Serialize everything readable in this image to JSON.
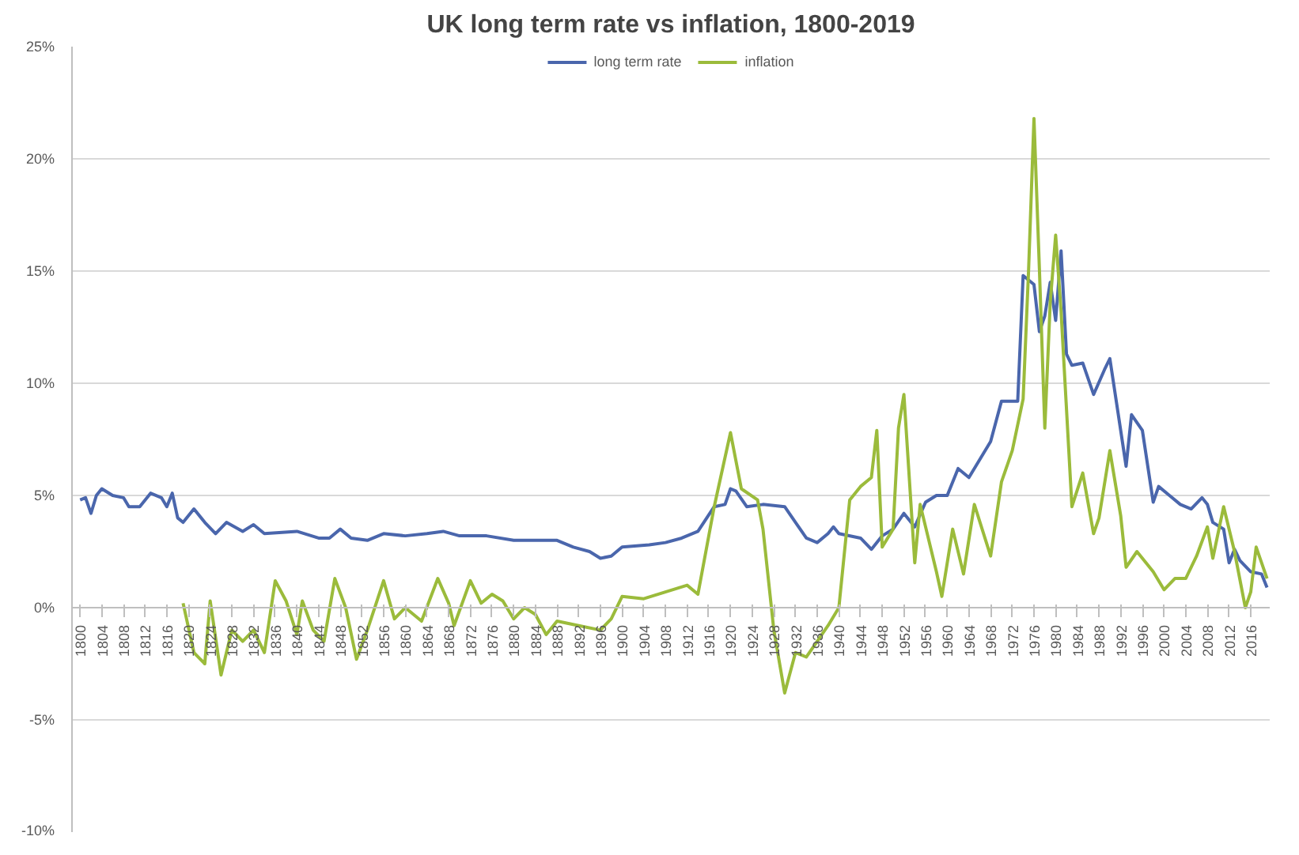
{
  "chart_data": {
    "type": "line",
    "title": "UK long term rate vs inflation, 1800-2019",
    "xlim": [
      1798.5,
      2019.5
    ],
    "xticks": [
      1800,
      1804,
      1808,
      1812,
      1816,
      1820,
      1824,
      1828,
      1832,
      1836,
      1840,
      1844,
      1848,
      1852,
      1856,
      1860,
      1864,
      1868,
      1872,
      1876,
      1880,
      1884,
      1888,
      1892,
      1896,
      1900,
      1904,
      1908,
      1912,
      1916,
      1920,
      1924,
      1928,
      1932,
      1936,
      1940,
      1944,
      1948,
      1952,
      1956,
      1960,
      1964,
      1968,
      1972,
      1976,
      1980,
      1984,
      1988,
      1992,
      1996,
      2000,
      2004,
      2008,
      2012,
      2016
    ],
    "ylim": [
      -10,
      25
    ],
    "yticks": [
      {
        "value": -10,
        "label": "-10%"
      },
      {
        "value": -5,
        "label": "-5%"
      },
      {
        "value": 0,
        "label": "0%"
      },
      {
        "value": 5,
        "label": "5%"
      },
      {
        "value": 10,
        "label": "10%"
      },
      {
        "value": 15,
        "label": "15%"
      },
      {
        "value": 20,
        "label": "20%"
      },
      {
        "value": 25,
        "label": "25%"
      }
    ],
    "grid": "y",
    "legend": "top",
    "marker": "none",
    "line_style": "solid",
    "series": [
      {
        "name": "long term rate",
        "color": "#4a66ac",
        "x": [
          1800,
          1801,
          1802,
          1803,
          1804,
          1806,
          1808,
          1809,
          1811,
          1813,
          1815,
          1816,
          1817,
          1818,
          1819,
          1821,
          1823,
          1825,
          1827,
          1830,
          1832,
          1834,
          1840,
          1844,
          1846,
          1848,
          1850,
          1853,
          1856,
          1860,
          1864,
          1867,
          1870,
          1875,
          1880,
          1888,
          1891,
          1894,
          1896,
          1898,
          1900,
          1905,
          1908,
          1911,
          1914,
          1917,
          1919,
          1920,
          1921,
          1923,
          1926,
          1930,
          1932,
          1934,
          1936,
          1938,
          1939,
          1940,
          1944,
          1946,
          1948,
          1950,
          1952,
          1954,
          1956,
          1958,
          1960,
          1962,
          1964,
          1966,
          1968,
          1970,
          1973,
          1974,
          1976,
          1977,
          1978,
          1979,
          1980,
          1981,
          1982,
          1983,
          1985,
          1987,
          1989,
          1990,
          1993,
          1994,
          1996,
          1998,
          1999,
          2001,
          2003,
          2005,
          2007,
          2008,
          2009,
          2011,
          2012,
          2013,
          2014,
          2016,
          2018,
          2019
        ],
        "values": [
          4.8,
          4.9,
          4.2,
          5.0,
          5.3,
          5.0,
          4.9,
          4.5,
          4.5,
          5.1,
          4.9,
          4.5,
          5.1,
          4.0,
          3.8,
          4.4,
          3.8,
          3.3,
          3.8,
          3.4,
          3.7,
          3.3,
          3.4,
          3.1,
          3.1,
          3.5,
          3.1,
          3.0,
          3.3,
          3.2,
          3.3,
          3.4,
          3.2,
          3.2,
          3.0,
          3.0,
          2.7,
          2.5,
          2.2,
          2.3,
          2.7,
          2.8,
          2.9,
          3.1,
          3.4,
          4.5,
          4.6,
          5.3,
          5.2,
          4.5,
          4.6,
          4.5,
          3.8,
          3.1,
          2.9,
          3.3,
          3.6,
          3.3,
          3.1,
          2.6,
          3.2,
          3.5,
          4.2,
          3.6,
          4.7,
          5.0,
          5.0,
          6.2,
          5.8,
          6.6,
          7.4,
          9.2,
          9.2,
          14.8,
          14.4,
          12.3,
          13.0,
          14.5,
          12.8,
          15.9,
          11.3,
          10.8,
          10.9,
          9.5,
          10.6,
          11.1,
          6.3,
          8.6,
          7.9,
          4.7,
          5.4,
          5.0,
          4.6,
          4.4,
          4.9,
          4.6,
          3.8,
          3.5,
          2.0,
          2.6,
          2.1,
          1.6,
          1.5,
          0.9
        ]
      },
      {
        "name": "inflation",
        "color": "#9bbb3b",
        "x": [
          1819,
          1821,
          1823,
          1824,
          1826,
          1828,
          1830,
          1832,
          1834,
          1836,
          1838,
          1840,
          1841,
          1843,
          1845,
          1847,
          1849,
          1851,
          1853,
          1856,
          1858,
          1860,
          1863,
          1866,
          1868,
          1869,
          1872,
          1874,
          1876,
          1878,
          1880,
          1882,
          1884,
          1886,
          1888,
          1892,
          1896,
          1898,
          1900,
          1904,
          1908,
          1912,
          1914,
          1917,
          1920,
          1922,
          1925,
          1926,
          1928,
          1930,
          1932,
          1934,
          1936,
          1938,
          1940,
          1942,
          1944,
          1946,
          1947,
          1948,
          1950,
          1951,
          1952,
          1954,
          1955,
          1958,
          1959,
          1961,
          1963,
          1965,
          1968,
          1970,
          1972,
          1974,
          1975,
          1976,
          1977,
          1978,
          1979,
          1980,
          1981,
          1983,
          1985,
          1987,
          1988,
          1990,
          1992,
          1993,
          1995,
          1998,
          2000,
          2002,
          2004,
          2006,
          2008,
          2009,
          2011,
          2013,
          2015,
          2016,
          2017,
          2019
        ],
        "values": [
          0.2,
          -2.0,
          -2.5,
          0.3,
          -3.0,
          -1.0,
          -1.5,
          -1.0,
          -2.0,
          1.2,
          0.3,
          -1.2,
          0.3,
          -1.0,
          -1.5,
          1.3,
          0.0,
          -2.3,
          -1.0,
          1.2,
          -0.5,
          0.0,
          -0.6,
          1.3,
          0.2,
          -0.8,
          1.2,
          0.2,
          0.6,
          0.3,
          -0.5,
          0.0,
          -0.3,
          -1.2,
          -0.6,
          -0.8,
          -1.0,
          -0.5,
          0.5,
          0.4,
          0.7,
          1.0,
          0.6,
          4.5,
          7.8,
          5.3,
          4.8,
          3.5,
          -1.0,
          -3.8,
          -2.0,
          -2.2,
          -1.5,
          -0.8,
          0.0,
          4.8,
          5.4,
          5.8,
          7.9,
          2.7,
          3.5,
          8.0,
          9.5,
          2.0,
          4.6,
          1.6,
          0.5,
          3.5,
          1.5,
          4.6,
          2.3,
          5.6,
          7.0,
          9.3,
          15.0,
          21.8,
          15.1,
          8.0,
          13.6,
          16.6,
          13.2,
          4.5,
          6.0,
          3.3,
          4.0,
          7.0,
          4.1,
          1.8,
          2.5,
          1.6,
          0.8,
          1.3,
          1.3,
          2.3,
          3.6,
          2.2,
          4.5,
          2.5,
          0.0,
          0.7,
          2.7,
          1.3
        ]
      }
    ]
  }
}
